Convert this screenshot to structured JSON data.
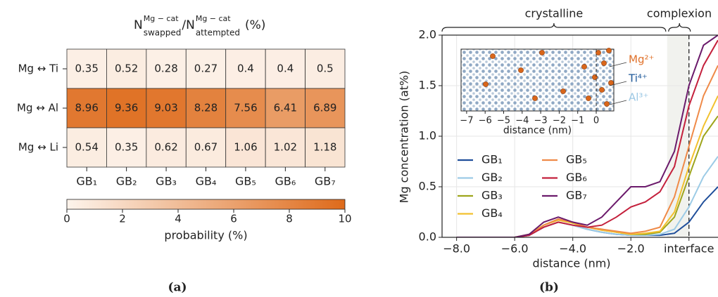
{
  "chart_data": [
    {
      "type": "heatmap",
      "title_parts": [
        "N",
        "Mg − cat",
        "swapped",
        "/N",
        "Mg − cat",
        "attempted",
        "(%)"
      ],
      "rows": [
        "Mg ↔ Ti",
        "Mg ↔ Al",
        "Mg ↔ Li"
      ],
      "columns": [
        "GB₁",
        "GB₂",
        "GB₃",
        "GB₄",
        "GB₅",
        "GB₆",
        "GB₇"
      ],
      "values": [
        [
          0.35,
          0.52,
          0.28,
          0.27,
          0.4,
          0.4,
          0.5
        ],
        [
          8.96,
          9.36,
          9.03,
          8.28,
          7.56,
          6.41,
          6.89
        ],
        [
          0.54,
          0.35,
          0.62,
          0.67,
          1.06,
          1.02,
          1.18
        ]
      ],
      "colormap": [
        "#fdf4ec",
        "#de6a1a"
      ],
      "clim": [
        0,
        10
      ],
      "colorbar_ticks": [
        0,
        2,
        4,
        6,
        8,
        10
      ],
      "colorbar_label": "probability (%)",
      "panel_label": "(a)"
    },
    {
      "type": "line",
      "panel_label": "(b)",
      "xlabel": "distance (nm)",
      "ylabel": "Mg concentration (at%)",
      "x": [
        -8,
        -7,
        -6,
        -5.5,
        -5,
        -4.5,
        -4,
        -3.5,
        -3,
        -2.5,
        -2,
        -1.5,
        -1,
        -0.5,
        0,
        0.5,
        1
      ],
      "series": [
        {
          "name": "GB₁",
          "color": "#1f4e9a",
          "values": [
            0,
            0,
            0,
            0.02,
            0.1,
            0.15,
            0.12,
            0.08,
            0.05,
            0.03,
            0.02,
            0.02,
            0.02,
            0.04,
            0.15,
            0.35,
            0.5
          ]
        },
        {
          "name": "GB₂",
          "color": "#9ccbe6",
          "values": [
            0,
            0,
            0,
            0.02,
            0.1,
            0.15,
            0.12,
            0.08,
            0.05,
            0.03,
            0.02,
            0.02,
            0.03,
            0.08,
            0.3,
            0.6,
            0.8
          ]
        },
        {
          "name": "GB₃",
          "color": "#9ea51c",
          "values": [
            0,
            0,
            0,
            0.03,
            0.12,
            0.18,
            0.14,
            0.1,
            0.08,
            0.05,
            0.03,
            0.03,
            0.05,
            0.2,
            0.6,
            1.0,
            1.2
          ]
        },
        {
          "name": "GB₄",
          "color": "#f2c12e",
          "values": [
            0,
            0,
            0,
            0.03,
            0.12,
            0.17,
            0.14,
            0.1,
            0.07,
            0.05,
            0.03,
            0.04,
            0.06,
            0.25,
            0.7,
            1.1,
            1.4
          ]
        },
        {
          "name": "GB₅",
          "color": "#ef8a48",
          "values": [
            0,
            0,
            0,
            0.02,
            0.12,
            0.18,
            0.15,
            0.1,
            0.08,
            0.06,
            0.04,
            0.06,
            0.1,
            0.4,
            0.9,
            1.4,
            1.7
          ]
        },
        {
          "name": "GB₆",
          "color": "#c4203c",
          "values": [
            0,
            0,
            0,
            0.02,
            0.1,
            0.15,
            0.12,
            0.1,
            0.12,
            0.2,
            0.3,
            0.35,
            0.45,
            0.7,
            1.3,
            1.7,
            1.95
          ]
        },
        {
          "name": "GB₇",
          "color": "#6b1a6b",
          "values": [
            0,
            0,
            0,
            0.03,
            0.15,
            0.2,
            0.15,
            0.12,
            0.2,
            0.35,
            0.5,
            0.5,
            0.55,
            0.85,
            1.5,
            1.9,
            2.0
          ]
        }
      ],
      "xlim": [
        -8.5,
        1.0
      ],
      "ylim": [
        0,
        2
      ],
      "xticks": [
        {
          "value": -8,
          "label": "−8.0"
        },
        {
          "value": -6,
          "label": "−6.0"
        },
        {
          "value": -4,
          "label": "−4.0"
        },
        {
          "value": -2,
          "label": "−2.0"
        },
        {
          "value": 0,
          "label": "interface"
        }
      ],
      "yticks": [
        {
          "value": 0,
          "label": "0.0"
        },
        {
          "value": 0.5,
          "label": "0.5"
        },
        {
          "value": 1,
          "label": "1.0"
        },
        {
          "value": 1.5,
          "label": "1.5"
        },
        {
          "value": 2,
          "label": "2.0"
        }
      ],
      "grid": true,
      "legend": "lower left",
      "regions": [
        {
          "label": "crystalline"
        },
        {
          "label": "complexion"
        }
      ],
      "complexion_range": [
        -0.75,
        0
      ],
      "inset": {
        "xlabel": "distance (nm)",
        "xlim": [
          -7.3,
          0.95
        ],
        "xticks": [
          {
            "value": -7,
            "label": "−7"
          },
          {
            "value": -6,
            "label": "−6"
          },
          {
            "value": -5,
            "label": "−5"
          },
          {
            "value": -4,
            "label": "−4"
          },
          {
            "value": -3,
            "label": "−3"
          },
          {
            "value": -2,
            "label": "−2"
          },
          {
            "value": -1,
            "label": "−1"
          },
          0
        ],
        "ions": [
          {
            "name": "Mg²⁺",
            "color": "#e0712a"
          },
          {
            "name": "Ti⁴⁺",
            "color": "#1f5a9a"
          },
          {
            "name": "Al³⁺",
            "color": "#9cc8e4"
          }
        ]
      }
    }
  ]
}
